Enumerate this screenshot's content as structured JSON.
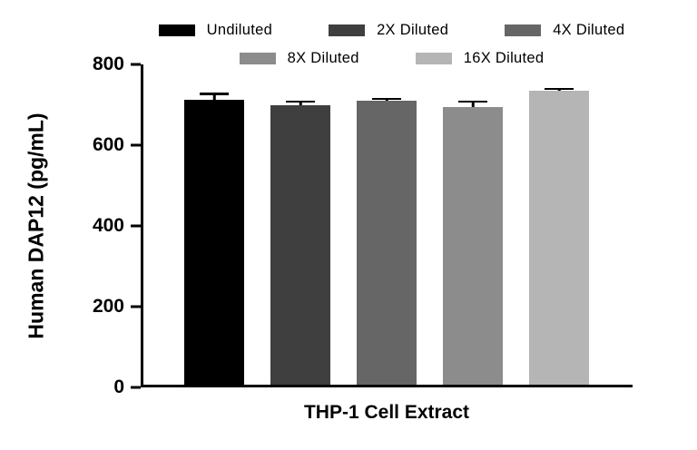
{
  "chart_data": {
    "type": "bar",
    "title": "",
    "xlabel": "THP-1 Cell Extract",
    "ylabel": "Human DAP12 (pg/mL)",
    "ylim": [
      0,
      800
    ],
    "yticks": [
      0,
      200,
      400,
      600,
      800
    ],
    "categories": [
      "THP-1 Cell Extract"
    ],
    "series": [
      {
        "name": "Undiluted",
        "value": 705,
        "error": 18,
        "color": "#000000"
      },
      {
        "name": "2X Diluted",
        "value": 692,
        "error": 12,
        "color": "#3f3f3f"
      },
      {
        "name": "4X Diluted",
        "value": 703,
        "error": 8,
        "color": "#666666"
      },
      {
        "name": "8X Diluted",
        "value": 688,
        "error": 16,
        "color": "#8c8c8c"
      },
      {
        "name": "16X Diluted",
        "value": 728,
        "error": 8,
        "color": "#b5b5b5"
      }
    ],
    "legend_rows": [
      [
        0,
        1,
        2
      ],
      [
        3,
        4
      ]
    ],
    "legend_position": "top",
    "grid": false,
    "axis_color": "#000000",
    "background_color": "#ffffff"
  }
}
